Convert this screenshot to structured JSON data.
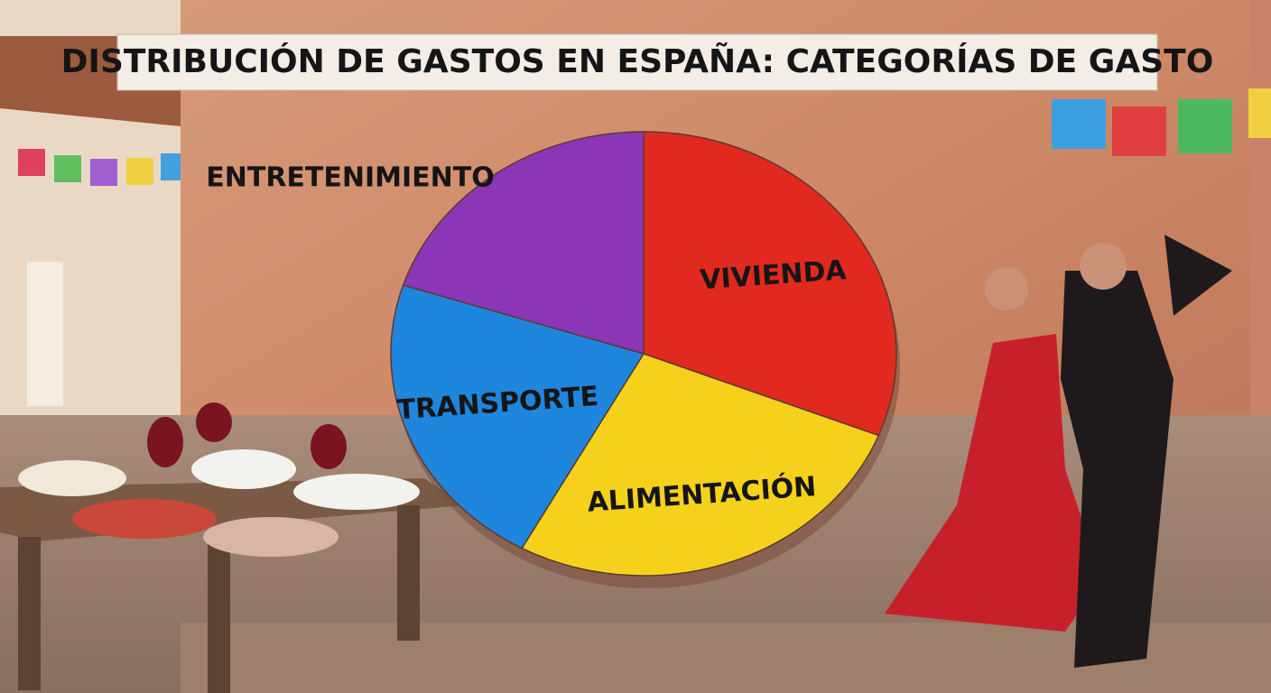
{
  "chart_data": {
    "type": "pie",
    "title": "DISTRIBUCIÓN DE GASTOS EN ESPAÑA: CATEGORÍAS DE GASTO",
    "categories": [
      "VIVIENDA",
      "ALIMENTACIÓN",
      "TRANSPORTE",
      "ENTRETENIMIENTO"
    ],
    "values": [
      31,
      27,
      22,
      20
    ],
    "colors": [
      "#e2291f",
      "#f6d11b",
      "#1f86de",
      "#8b36b6"
    ]
  }
}
